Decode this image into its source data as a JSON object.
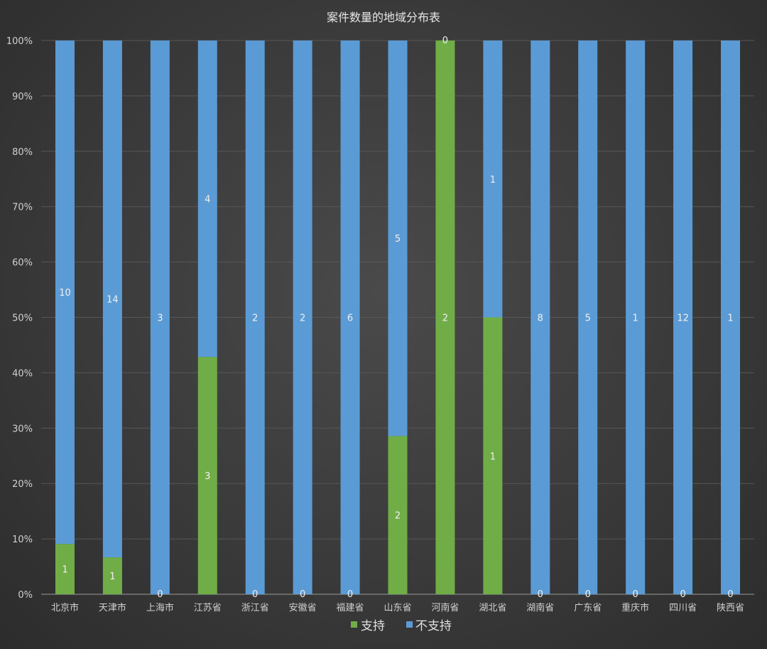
{
  "chart_data": {
    "type": "bar",
    "stacked": "percent",
    "title": "案件数量的地域分布表",
    "categories": [
      "北京市",
      "天津市",
      "上海市",
      "江苏省",
      "浙江省",
      "安徽省",
      "福建省",
      "山东省",
      "河南省",
      "湖北省",
      "湖南省",
      "广东省",
      "重庆市",
      "四川省",
      "陕西省"
    ],
    "series": [
      {
        "name": "支持",
        "color": "#70ad47",
        "values": [
          1,
          1,
          0,
          3,
          0,
          0,
          0,
          2,
          2,
          1,
          0,
          0,
          0,
          0,
          0
        ]
      },
      {
        "name": "不支持",
        "color": "#5b9bd5",
        "values": [
          10,
          14,
          3,
          4,
          2,
          2,
          6,
          5,
          0,
          1,
          8,
          5,
          1,
          12,
          1
        ]
      }
    ],
    "yticks": [
      "0%",
      "10%",
      "20%",
      "30%",
      "40%",
      "50%",
      "60%",
      "70%",
      "80%",
      "90%",
      "100%"
    ],
    "ylim": [
      0,
      100
    ],
    "grid": true,
    "legend_position": "bottom"
  }
}
